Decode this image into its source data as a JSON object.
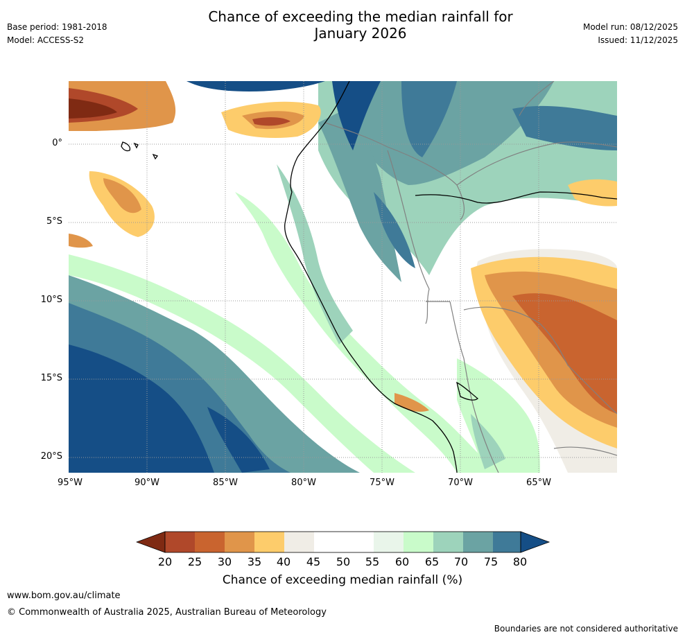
{
  "header": {
    "title_line1": "Chance of exceeding the median rainfall for",
    "title_line2": "January 2026",
    "base_period": "Base period: 1981-2018",
    "model": "Model: ACCESS-S2",
    "model_run": "Model run: 08/12/2025",
    "issued": "Issued: 11/12/2025"
  },
  "map": {
    "lat_labels": [
      "0°",
      "5°S",
      "10°S",
      "15°S",
      "20°S"
    ],
    "lon_labels": [
      "95°W",
      "90°W",
      "85°W",
      "80°W",
      "75°W",
      "70°W",
      "65°W"
    ]
  },
  "colorbar": {
    "ticks": [
      "20",
      "25",
      "30",
      "35",
      "40",
      "45",
      "50",
      "55",
      "60",
      "65",
      "70",
      "75",
      "80"
    ],
    "colors": [
      "#7f2a13",
      "#b0482a",
      "#c9642f",
      "#e0954a",
      "#fdcc6b",
      "#f0ede6",
      "#ffffff",
      "#ffffff",
      "#e9f5ea",
      "#c9fbca",
      "#9dd3bb",
      "#6ba3a3",
      "#3f7a98",
      "#154e86"
    ],
    "label": "Chance of exceeding median rainfall (%)"
  },
  "footer": {
    "url": "www.bom.gov.au/climate",
    "copyright": "© Commonwealth of Australia 2025, Australian Bureau of Meteorology",
    "disclaimer": "Boundaries are not considered authoritative"
  }
}
